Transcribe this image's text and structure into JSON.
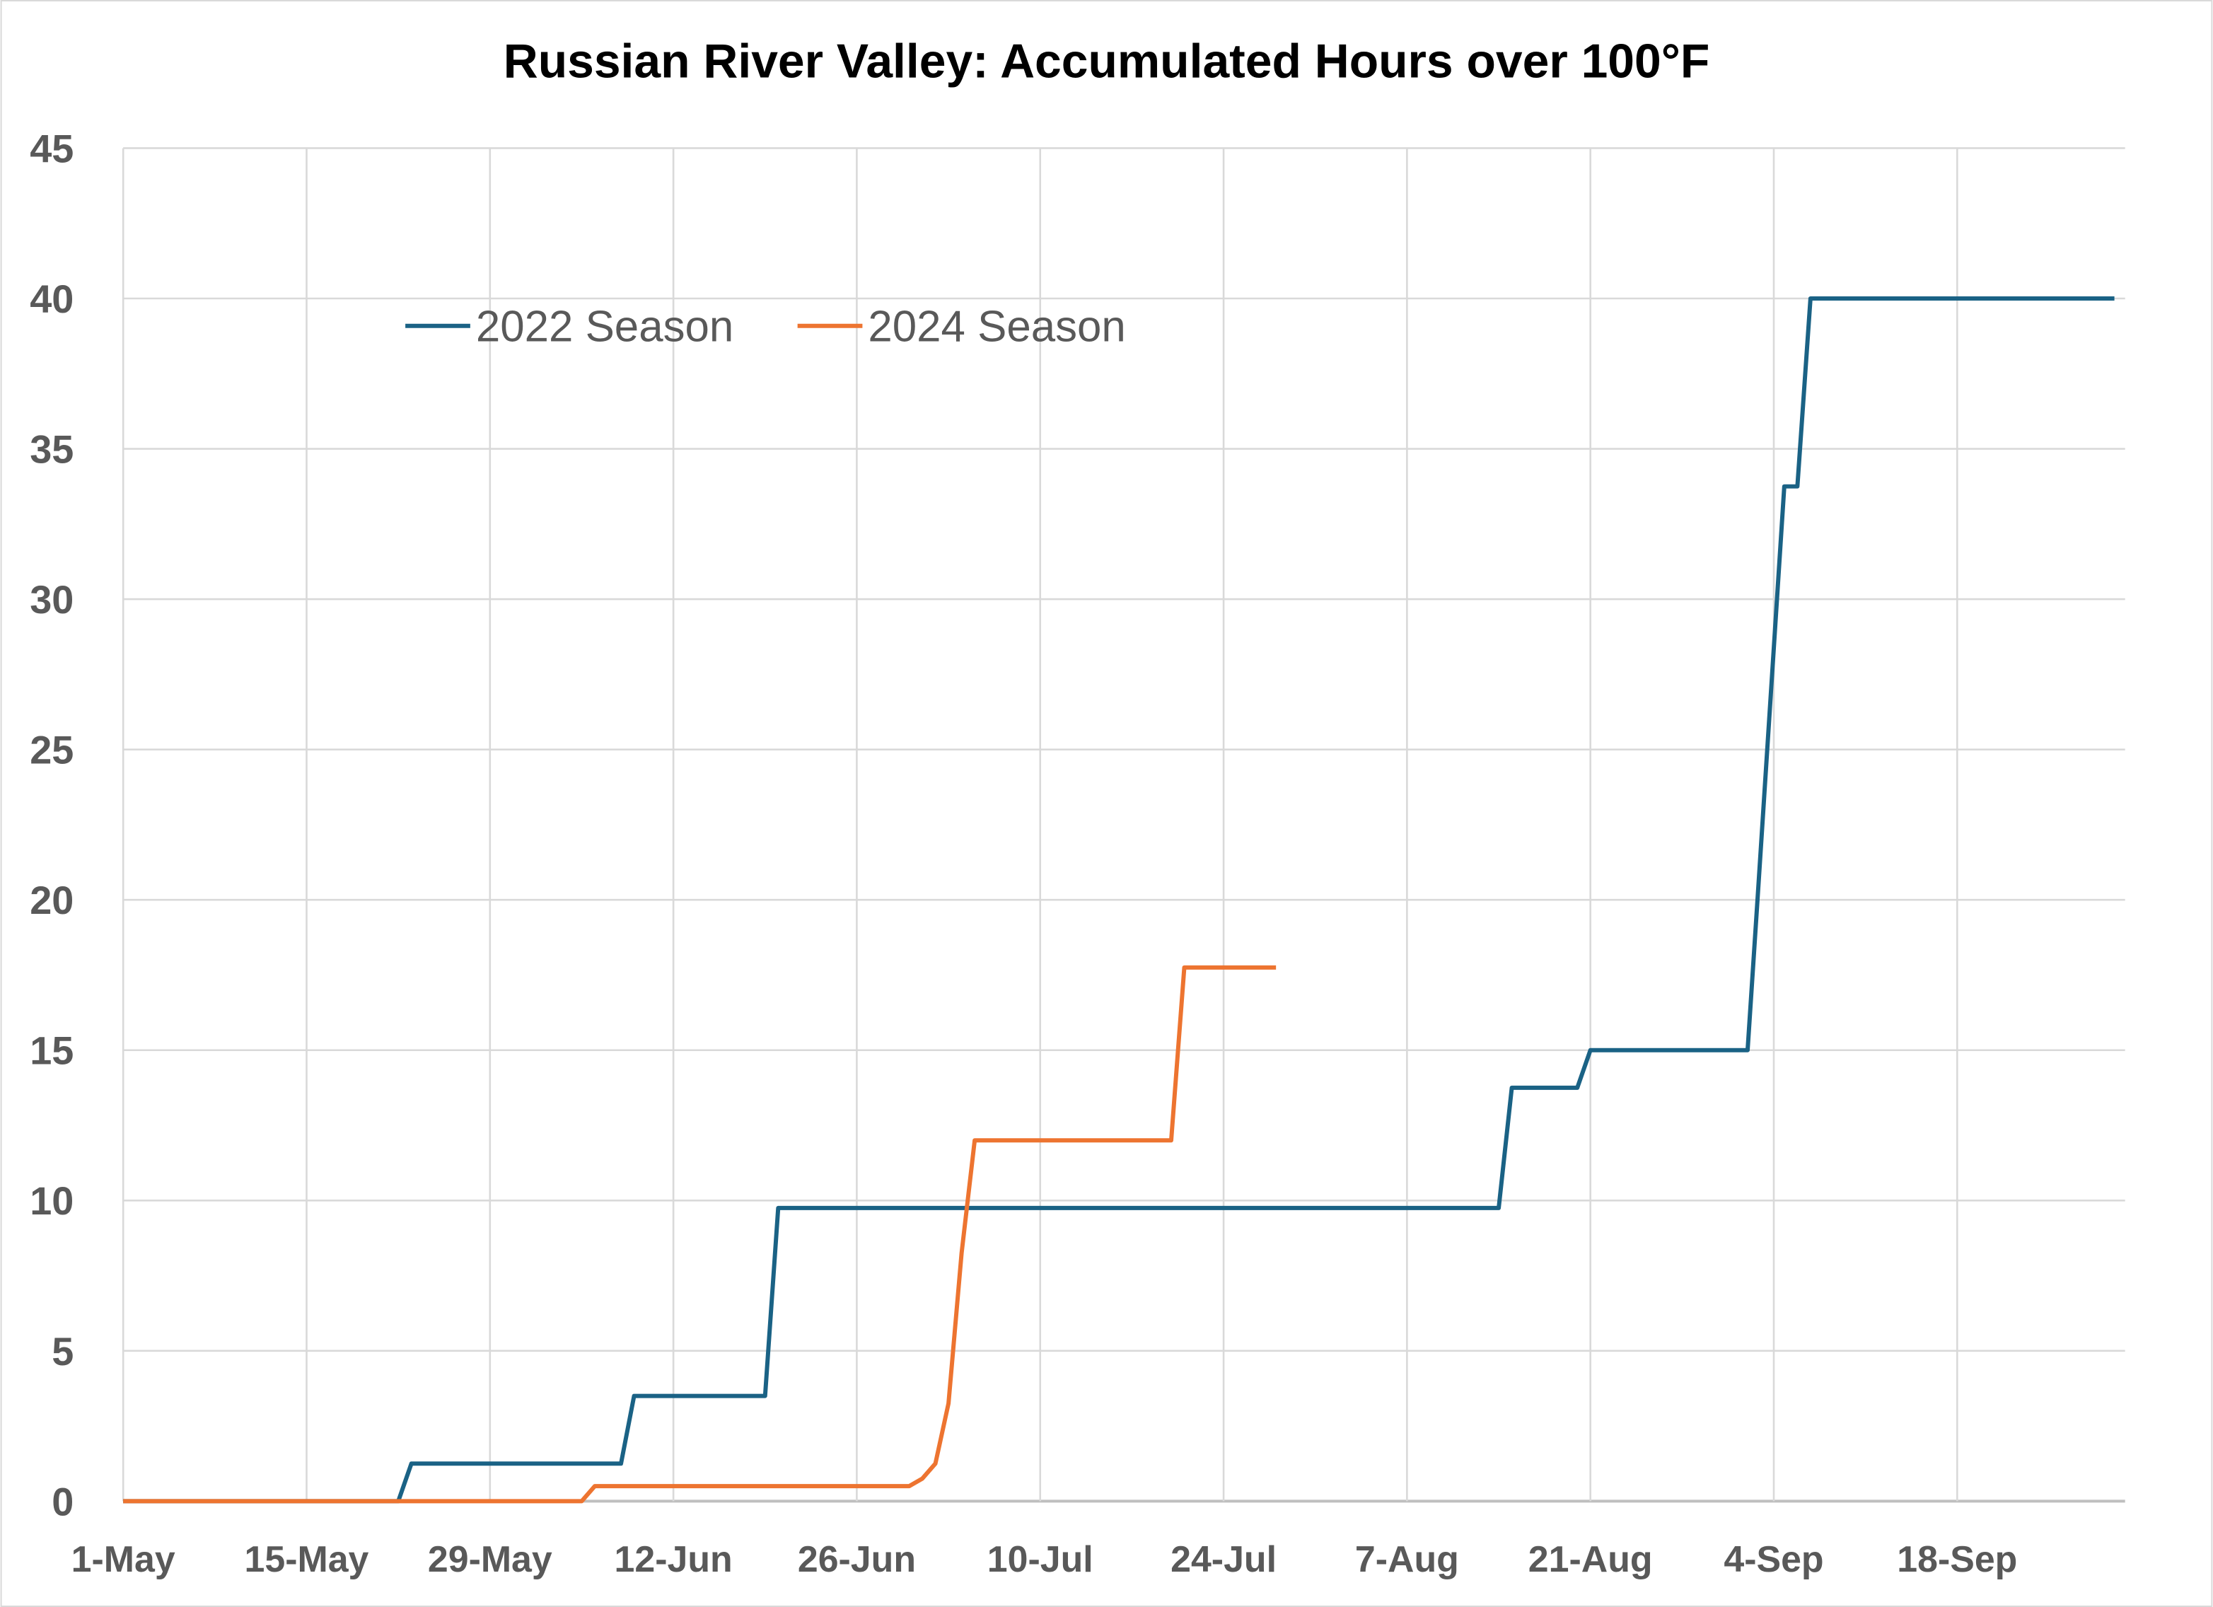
{
  "chart_data": {
    "type": "line",
    "title": "Russian River Valley: Accumulated Hours over 100°F",
    "xlabel": "",
    "ylabel": "",
    "x_units": "days since 1-May",
    "xlim": [
      0,
      154
    ],
    "ylim": [
      0,
      45
    ],
    "yticks": [
      0,
      5,
      10,
      15,
      20,
      25,
      30,
      35,
      40,
      45
    ],
    "xticks": [
      {
        "day": 0,
        "label": "1-May"
      },
      {
        "day": 14,
        "label": "15-May"
      },
      {
        "day": 28,
        "label": "29-May"
      },
      {
        "day": 42,
        "label": "12-Jun"
      },
      {
        "day": 56,
        "label": "26-Jun"
      },
      {
        "day": 70,
        "label": "10-Jul"
      },
      {
        "day": 84,
        "label": "24-Jul"
      },
      {
        "day": 98,
        "label": "7-Aug"
      },
      {
        "day": 112,
        "label": "21-Aug"
      },
      {
        "day": 126,
        "label": "4-Sep"
      },
      {
        "day": 140,
        "label": "18-Sep"
      }
    ],
    "grid": true,
    "legend_position": "top-left",
    "series": [
      {
        "name": "2022 Season",
        "color": "#1a6285",
        "points": [
          [
            0,
            0
          ],
          [
            21,
            0
          ],
          [
            22,
            1.25
          ],
          [
            38,
            1.25
          ],
          [
            39,
            3.5
          ],
          [
            49,
            3.5
          ],
          [
            50,
            9.75
          ],
          [
            105,
            9.75
          ],
          [
            106,
            13.75
          ],
          [
            111,
            13.75
          ],
          [
            112,
            15
          ],
          [
            124,
            15
          ],
          [
            124.8,
            20.3
          ],
          [
            126.8,
            33.75
          ],
          [
            127.8,
            33.75
          ],
          [
            128.8,
            40
          ],
          [
            152,
            40
          ]
        ]
      },
      {
        "name": "2024 Season",
        "color": "#ed7430",
        "points": [
          [
            0,
            0
          ],
          [
            35,
            0
          ],
          [
            36,
            0.5
          ],
          [
            60,
            0.5
          ],
          [
            61,
            0.75
          ],
          [
            62,
            1.25
          ],
          [
            63,
            3.25
          ],
          [
            64,
            8.25
          ],
          [
            65,
            12
          ],
          [
            80,
            12
          ],
          [
            81,
            17.75
          ],
          [
            88,
            17.75
          ]
        ]
      }
    ]
  }
}
